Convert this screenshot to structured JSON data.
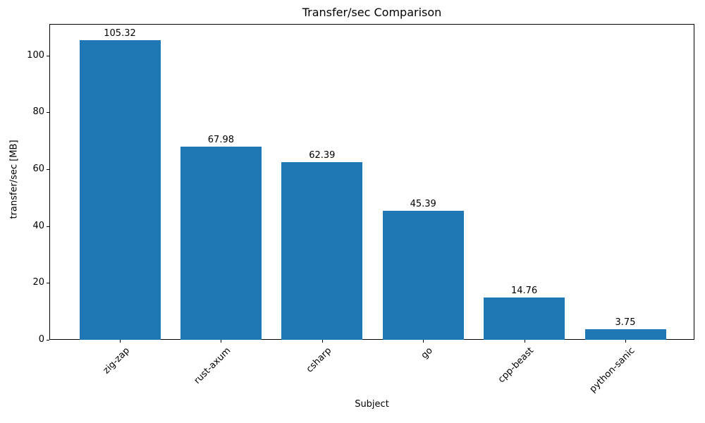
{
  "chart_data": {
    "type": "bar",
    "title": "Transfer/sec Comparison",
    "xlabel": "Subject",
    "ylabel": "transfer/sec [MB]",
    "categories": [
      "zig-zap",
      "rust-axum",
      "csharp",
      "go",
      "cpp-beast",
      "python-sanic"
    ],
    "values": [
      105.32,
      67.98,
      62.39,
      45.39,
      14.76,
      3.75
    ],
    "value_labels": [
      "105.32",
      "67.98",
      "62.39",
      "45.39",
      "14.76",
      "3.75"
    ],
    "yticks": [
      0,
      20,
      40,
      60,
      80,
      100
    ],
    "ytick_labels": [
      "0",
      "20",
      "40",
      "60",
      "80",
      "100"
    ],
    "ylim": [
      0,
      111.1
    ],
    "grid": false,
    "legend": null,
    "bar_color": "#1f77b4",
    "axis_color": "#000000",
    "text_color": "#000000"
  }
}
